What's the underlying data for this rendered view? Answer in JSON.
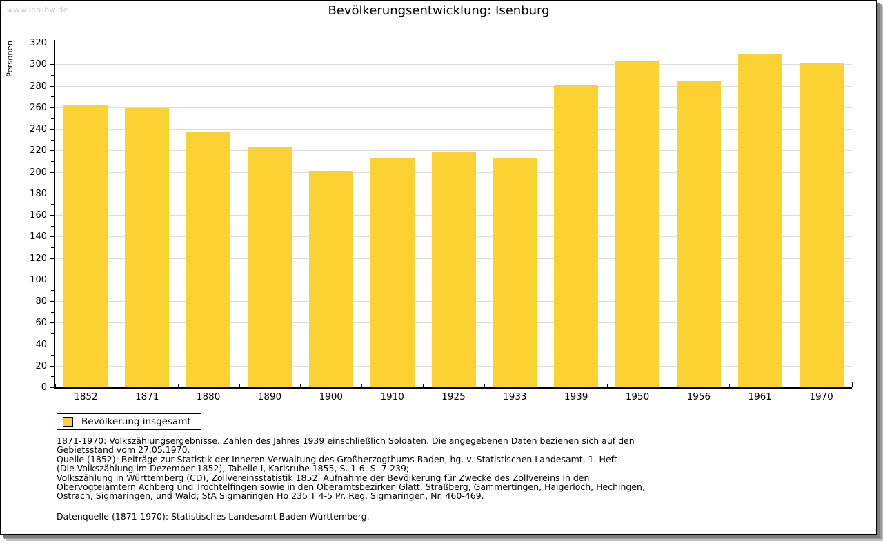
{
  "watermark": "www.leo-bw.de",
  "header": {
    "title": "Bevölkerungsentwicklung: Isenburg"
  },
  "legend": {
    "label": "Bevölkerung insgesamt"
  },
  "chart_data": {
    "type": "bar",
    "title": "Bevölkerungsentwicklung: Isenburg",
    "xlabel": "",
    "ylabel": "Personen",
    "categories": [
      "1852",
      "1871",
      "1880",
      "1890",
      "1900",
      "1910",
      "1925",
      "1933",
      "1939",
      "1950",
      "1956",
      "1961",
      "1970"
    ],
    "series": [
      {
        "name": "Bevölkerung insgesamt",
        "values": [
          262,
          259,
          237,
          223,
          201,
          213,
          219,
          213,
          281,
          303,
          285,
          309,
          301
        ]
      }
    ],
    "ylim": [
      0,
      320
    ],
    "ytick_step": 20,
    "minor_tick_step": 10,
    "grid": true,
    "legend_position": "bottom-left",
    "bar_color": "#fcd232",
    "gridline_color": "#dcdcdc"
  },
  "footnote": {
    "lines": [
      "1871-1970: Volkszählungsergebnisse. Zahlen des Jahres 1939 einschließlich Soldaten. Die angegebenen Daten beziehen sich auf den",
      "Gebietsstand vom 27.05.1970.",
      "Quelle (1852): Beiträge zur Statistik der Inneren Verwaltung des Großherzogthums Baden, hg. v. Statistischen Landesamt, 1. Heft",
      "(Die Volkszählung im Dezember 1852), Tabelle I, Karlsruhe 1855, S. 1-6, S. 7-239;",
      "Volkszählung in Württemberg (CD), Zollvereinsstatistik 1852. Aufnahme der Bevölkerung für Zwecke des Zollvereins in den",
      "Obervogteiämtern Achberg und Trochtelfingen sowie in den Oberamtsbezirken Glatt, Straßberg, Gammertingen, Haigerloch, Hechingen,",
      "Ostrach, Sigmaringen, und Wald; StA Sigmaringen Ho 235 T 4-5 Pr. Reg. Sigmaringen, Nr. 460-469."
    ],
    "datasource": "Datenquelle (1871-1970): Statistisches Landesamt Baden-Württemberg."
  }
}
